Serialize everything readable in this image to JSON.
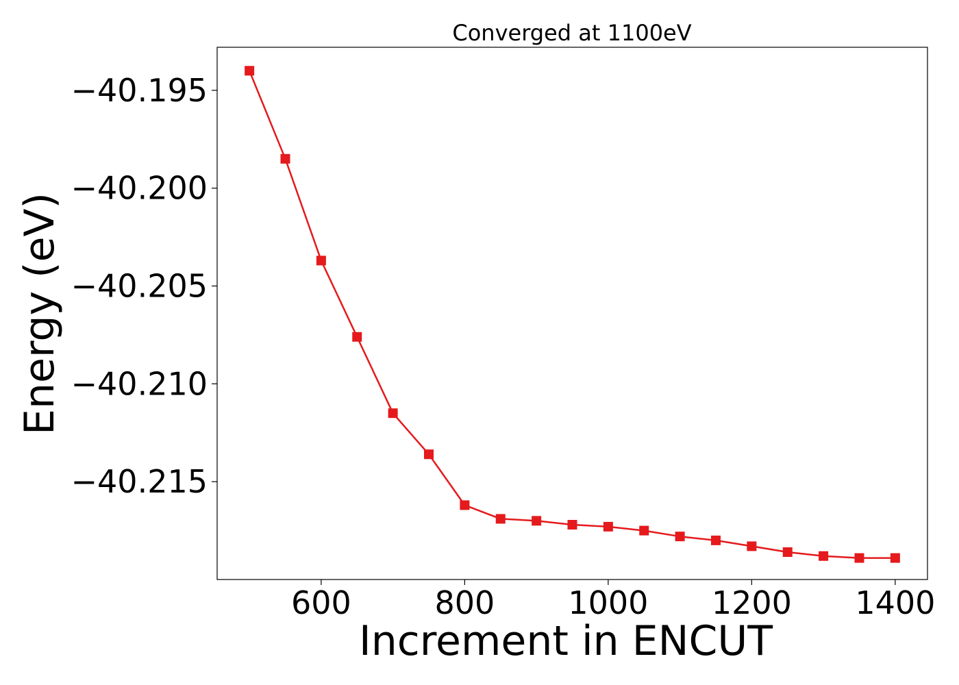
{
  "chart_data": {
    "type": "line",
    "title": "Converged at 1100eV",
    "xlabel": "Increment in ENCUT",
    "ylabel": "Energy (eV)",
    "xlim": [
      455,
      1445
    ],
    "ylim": [
      -40.22,
      -40.1928
    ],
    "xticks": [
      600,
      800,
      1000,
      1200,
      1400
    ],
    "xtick_labels": [
      "600",
      "800",
      "1000",
      "1200",
      "1400"
    ],
    "yticks": [
      -40.195,
      -40.2,
      -40.205,
      -40.21,
      -40.215
    ],
    "ytick_labels": [
      "−40.195",
      "−40.200",
      "−40.205",
      "−40.210",
      "−40.215"
    ],
    "grid": false,
    "legend": null,
    "marker": "square",
    "color": "#e41a1c",
    "series": [
      {
        "x": [
          500,
          550,
          600,
          650,
          700,
          750,
          800,
          850,
          900,
          950,
          1000,
          1050,
          1100,
          1150,
          1200,
          1250,
          1300,
          1350,
          1400
        ],
        "y": [
          -40.194,
          -40.1985,
          -40.2037,
          -40.2076,
          -40.2115,
          -40.2136,
          -40.2162,
          -40.2169,
          -40.217,
          -40.2172,
          -40.2173,
          -40.2175,
          -40.2178,
          -40.218,
          -40.2183,
          -40.2186,
          -40.2188,
          -40.2189,
          -40.2189
        ]
      }
    ]
  }
}
